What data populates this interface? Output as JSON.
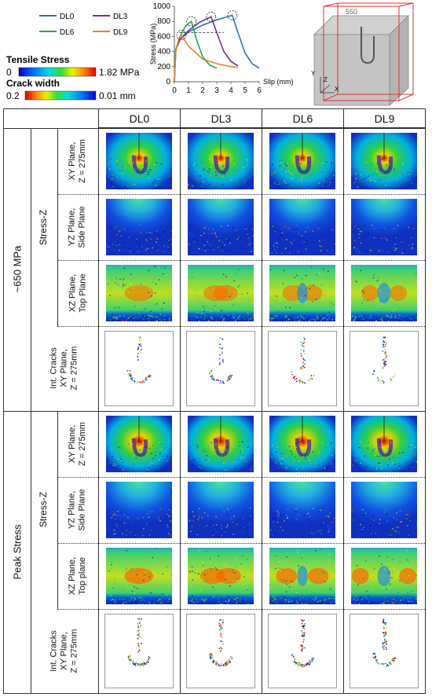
{
  "legend": {
    "series": [
      {
        "name": "DL0",
        "color": "#2e75b6"
      },
      {
        "name": "DL3",
        "color": "#7030a0"
      },
      {
        "name": "DL6",
        "color": "#22a84b"
      },
      {
        "name": "DL9",
        "color": "#ed7d31"
      }
    ],
    "tensile_title": "Tensile Stress",
    "tensile_min": "0",
    "tensile_max": "1.82 MPa",
    "crack_title": "Crack width",
    "crack_min": "0.2",
    "crack_max": "0.01 mm"
  },
  "chart_data": {
    "type": "line",
    "xlabel": "Slip (mm)",
    "ylabel": "Stress (MPa)",
    "xlim": [
      0,
      6
    ],
    "ylim": [
      0,
      1000
    ],
    "xticks": [
      "0",
      "1",
      "2",
      "3",
      "4",
      "5",
      "6"
    ],
    "yticks": [
      "0",
      "200",
      "400",
      "600",
      "800",
      "1000"
    ],
    "reference_line_y": 650,
    "series": [
      {
        "name": "DL0",
        "color": "#2e75b6",
        "peak": [
          4.1,
          880
        ],
        "points": [
          [
            0,
            0
          ],
          [
            0.1,
            420
          ],
          [
            0.4,
            560
          ],
          [
            1,
            660
          ],
          [
            2,
            750
          ],
          [
            3,
            820
          ],
          [
            3.8,
            865
          ],
          [
            4.1,
            880
          ],
          [
            4.5,
            650
          ],
          [
            5,
            380
          ],
          [
            5.5,
            240
          ],
          [
            6,
            180
          ]
        ]
      },
      {
        "name": "DL3",
        "color": "#7030a0",
        "peak": [
          2.6,
          860
        ],
        "points": [
          [
            0,
            0
          ],
          [
            0.1,
            420
          ],
          [
            0.4,
            560
          ],
          [
            1,
            680
          ],
          [
            1.8,
            790
          ],
          [
            2.6,
            860
          ],
          [
            3,
            650
          ],
          [
            3.5,
            400
          ],
          [
            4,
            270
          ],
          [
            4.5,
            210
          ]
        ]
      },
      {
        "name": "DL6",
        "color": "#22a84b",
        "peak": [
          1.2,
          800
        ],
        "points": [
          [
            0,
            0
          ],
          [
            0.1,
            430
          ],
          [
            0.4,
            600
          ],
          [
            0.8,
            740
          ],
          [
            1.2,
            800
          ],
          [
            1.6,
            540
          ],
          [
            2,
            330
          ],
          [
            2.5,
            220
          ],
          [
            3,
            180
          ]
        ]
      },
      {
        "name": "DL9",
        "color": "#ed7d31",
        "peak": [
          0.5,
          620
        ],
        "points": [
          [
            0,
            0
          ],
          [
            0.1,
            400
          ],
          [
            0.3,
            560
          ],
          [
            0.5,
            620
          ],
          [
            1,
            470
          ],
          [
            2,
            300
          ],
          [
            3,
            240
          ],
          [
            4,
            200
          ],
          [
            4.5,
            190
          ]
        ]
      }
    ]
  },
  "geometry": {
    "dimension_label": "550",
    "axis_y": "Y",
    "axis_z": "Z",
    "axis_x": "X"
  },
  "table": {
    "columns": [
      "DL0",
      "DL3",
      "DL6",
      "DL9"
    ],
    "groups": [
      {
        "label": "~650 MPa",
        "stress_label": "Stress-Z",
        "rows": [
          {
            "label": "XY Plane,\nZ = 275mm",
            "kind": "xy",
            "intensity": 0.7
          },
          {
            "label": "YZ Plane,\nSide Plane",
            "kind": "yz",
            "intensity": 0.4
          },
          {
            "label": "XZ Plane,\nTop Plane",
            "kind": "xz",
            "intensity": 0.6
          }
        ],
        "crack_label": "Int. Cracks\nXY Plane,\nZ = 275mm"
      },
      {
        "label": "Peak Stress",
        "stress_label": "Stress-Z",
        "rows": [
          {
            "label": "XY Plane,\nZ = 275mm",
            "kind": "xy",
            "intensity": 1.0
          },
          {
            "label": "YZ Plane,\nSide Plane",
            "kind": "yz",
            "intensity": 0.7
          },
          {
            "label": "XZ Plane,\nTop plane",
            "kind": "xz",
            "intensity": 1.0
          }
        ],
        "crack_label": "Int. Cracks\nXY Plane,\nZ = 275mm"
      }
    ]
  }
}
